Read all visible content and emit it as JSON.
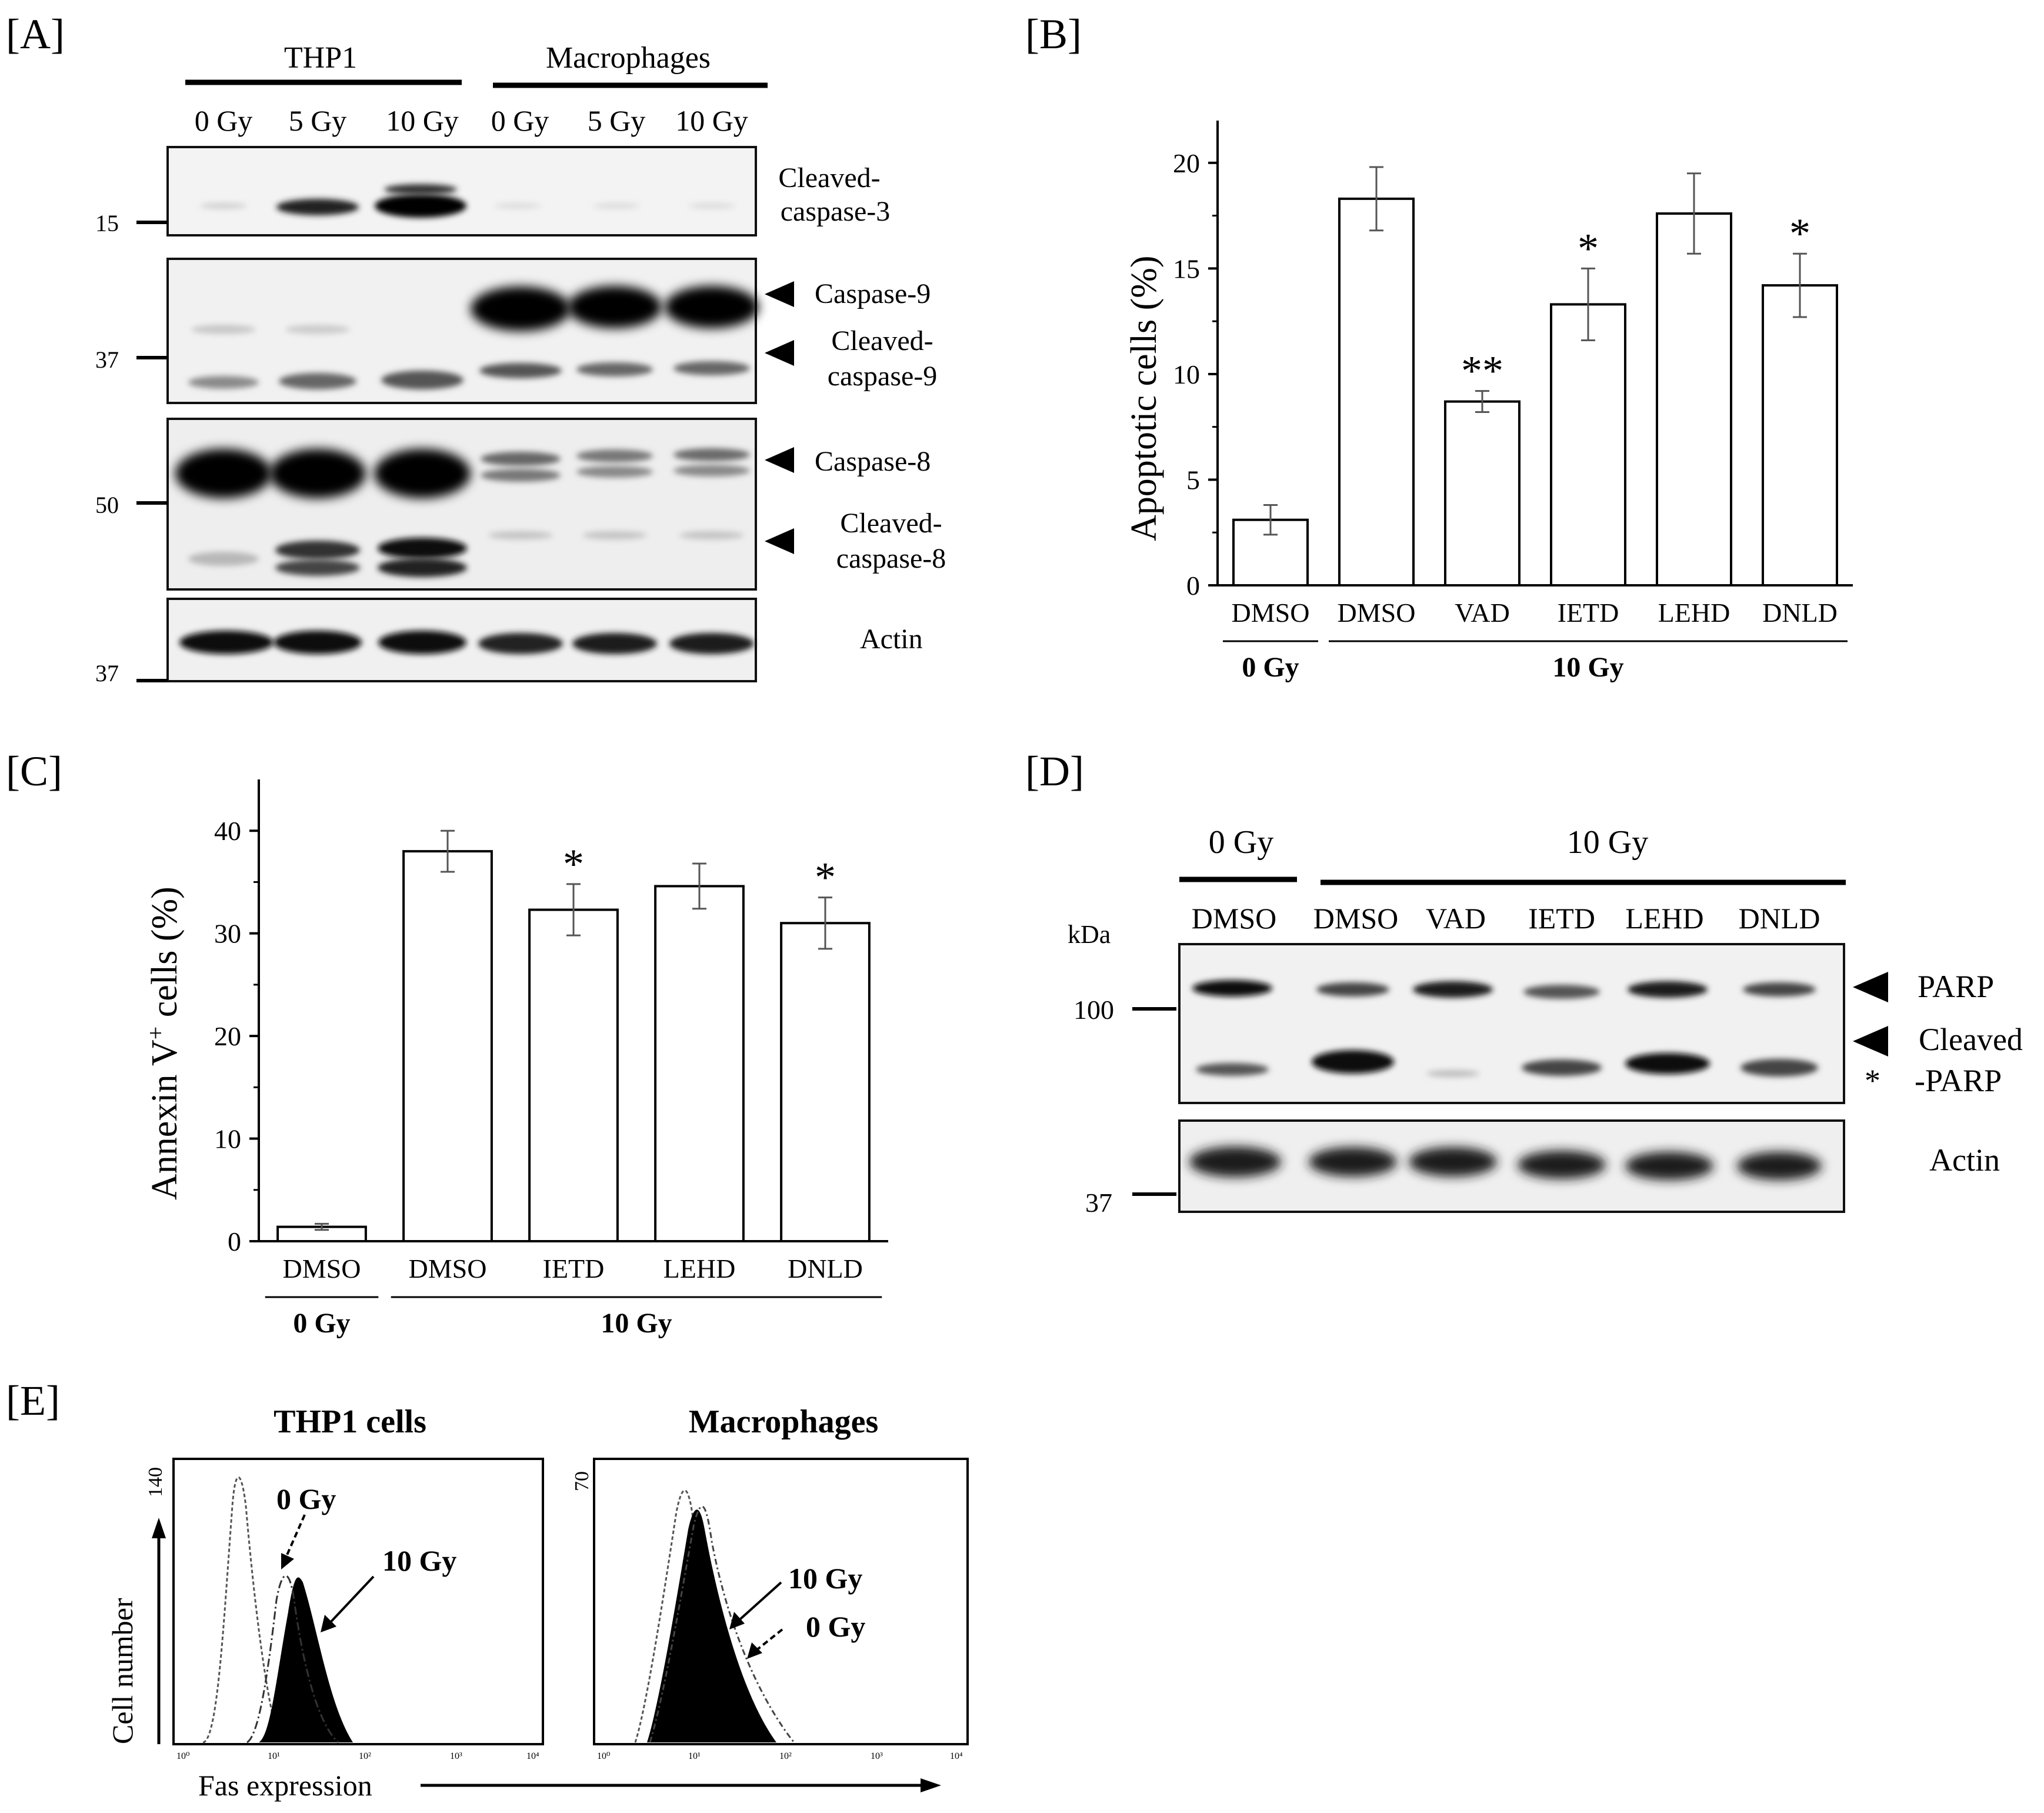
{
  "panels": {
    "A": {
      "label": "[A]",
      "groups": [
        "THP1",
        "Macrophages"
      ],
      "lanes": [
        "0 Gy",
        "5 Gy",
        "10 Gy",
        "0 Gy",
        "5 Gy",
        "10 Gy"
      ],
      "markers": [
        "15",
        "37",
        "50",
        "37"
      ],
      "blot_labels": {
        "cl_casp3_1": "Cleaved-",
        "cl_casp3_2": "caspase-3",
        "casp9": "Caspase-9",
        "cl_casp9_1": "Cleaved-",
        "cl_casp9_2": "caspase-9",
        "casp8": "Caspase-8",
        "cl_casp8_1": "Cleaved-",
        "cl_casp8_2": "caspase-8",
        "actin": "Actin"
      }
    },
    "B": {
      "label": "[B]"
    },
    "C": {
      "label": "[C]"
    },
    "D": {
      "label": "[D]",
      "dose_left": "0 Gy",
      "dose_right": "10 Gy",
      "kda": "kDa",
      "lanes": [
        "DMSO",
        "DMSO",
        "VAD",
        "IETD",
        "LEHD",
        "DNLD"
      ],
      "markers": [
        "100",
        "37"
      ],
      "labels": {
        "parp": "PARP",
        "cl_parp_1": "Cleaved",
        "cl_parp_2": "-PARP",
        "star": "*",
        "actin": "Actin"
      }
    },
    "E": {
      "label": "[E]",
      "title_left": "THP1 cells",
      "title_right": "Macrophages",
      "ymax_left": "140",
      "ymax_right": "70",
      "ylabel": "Cell number",
      "xlabel": "Fas expression",
      "dose_0": "0 Gy",
      "dose_10": "10 Gy",
      "ticks": [
        "10⁰",
        "10¹",
        "10²",
        "10³",
        "10⁴"
      ]
    }
  },
  "chart_data": [
    {
      "type": "bar",
      "panel": "B",
      "categories": [
        "DMSO",
        "DMSO",
        "VAD",
        "IETD",
        "LEHD",
        "DNLD"
      ],
      "values": [
        3.1,
        18.3,
        8.7,
        13.3,
        17.6,
        14.2
      ],
      "errors": [
        0.7,
        1.5,
        0.5,
        1.7,
        1.9,
        1.5
      ],
      "significance": [
        "",
        "",
        "**",
        "*",
        "",
        "*"
      ],
      "group_labels": [
        {
          "text": "0 Gy",
          "from": 0,
          "to": 0
        },
        {
          "text": "10 Gy",
          "from": 1,
          "to": 5
        }
      ],
      "ylabel": "Apoptotic cells (%)",
      "ylim": [
        0,
        22
      ],
      "yticks": [
        0,
        5,
        10,
        15,
        20
      ]
    },
    {
      "type": "bar",
      "panel": "C",
      "categories": [
        "DMSO",
        "DMSO",
        "IETD",
        "LEHD",
        "DNLD"
      ],
      "values": [
        1.4,
        38.0,
        32.3,
        34.6,
        31.0
      ],
      "errors": [
        0.3,
        2.0,
        2.5,
        2.2,
        2.5
      ],
      "significance": [
        "",
        "",
        "*",
        "",
        "*"
      ],
      "group_labels": [
        {
          "text": "0 Gy",
          "from": 0,
          "to": 0
        },
        {
          "text": "10 Gy",
          "from": 1,
          "to": 4
        }
      ],
      "ylabel_main": "Annexin V",
      "ylabel_sup": "+",
      "ylabel_tail": " cells (%)",
      "ylim": [
        0,
        45
      ],
      "yticks": [
        0,
        10,
        20,
        30,
        40
      ]
    }
  ]
}
